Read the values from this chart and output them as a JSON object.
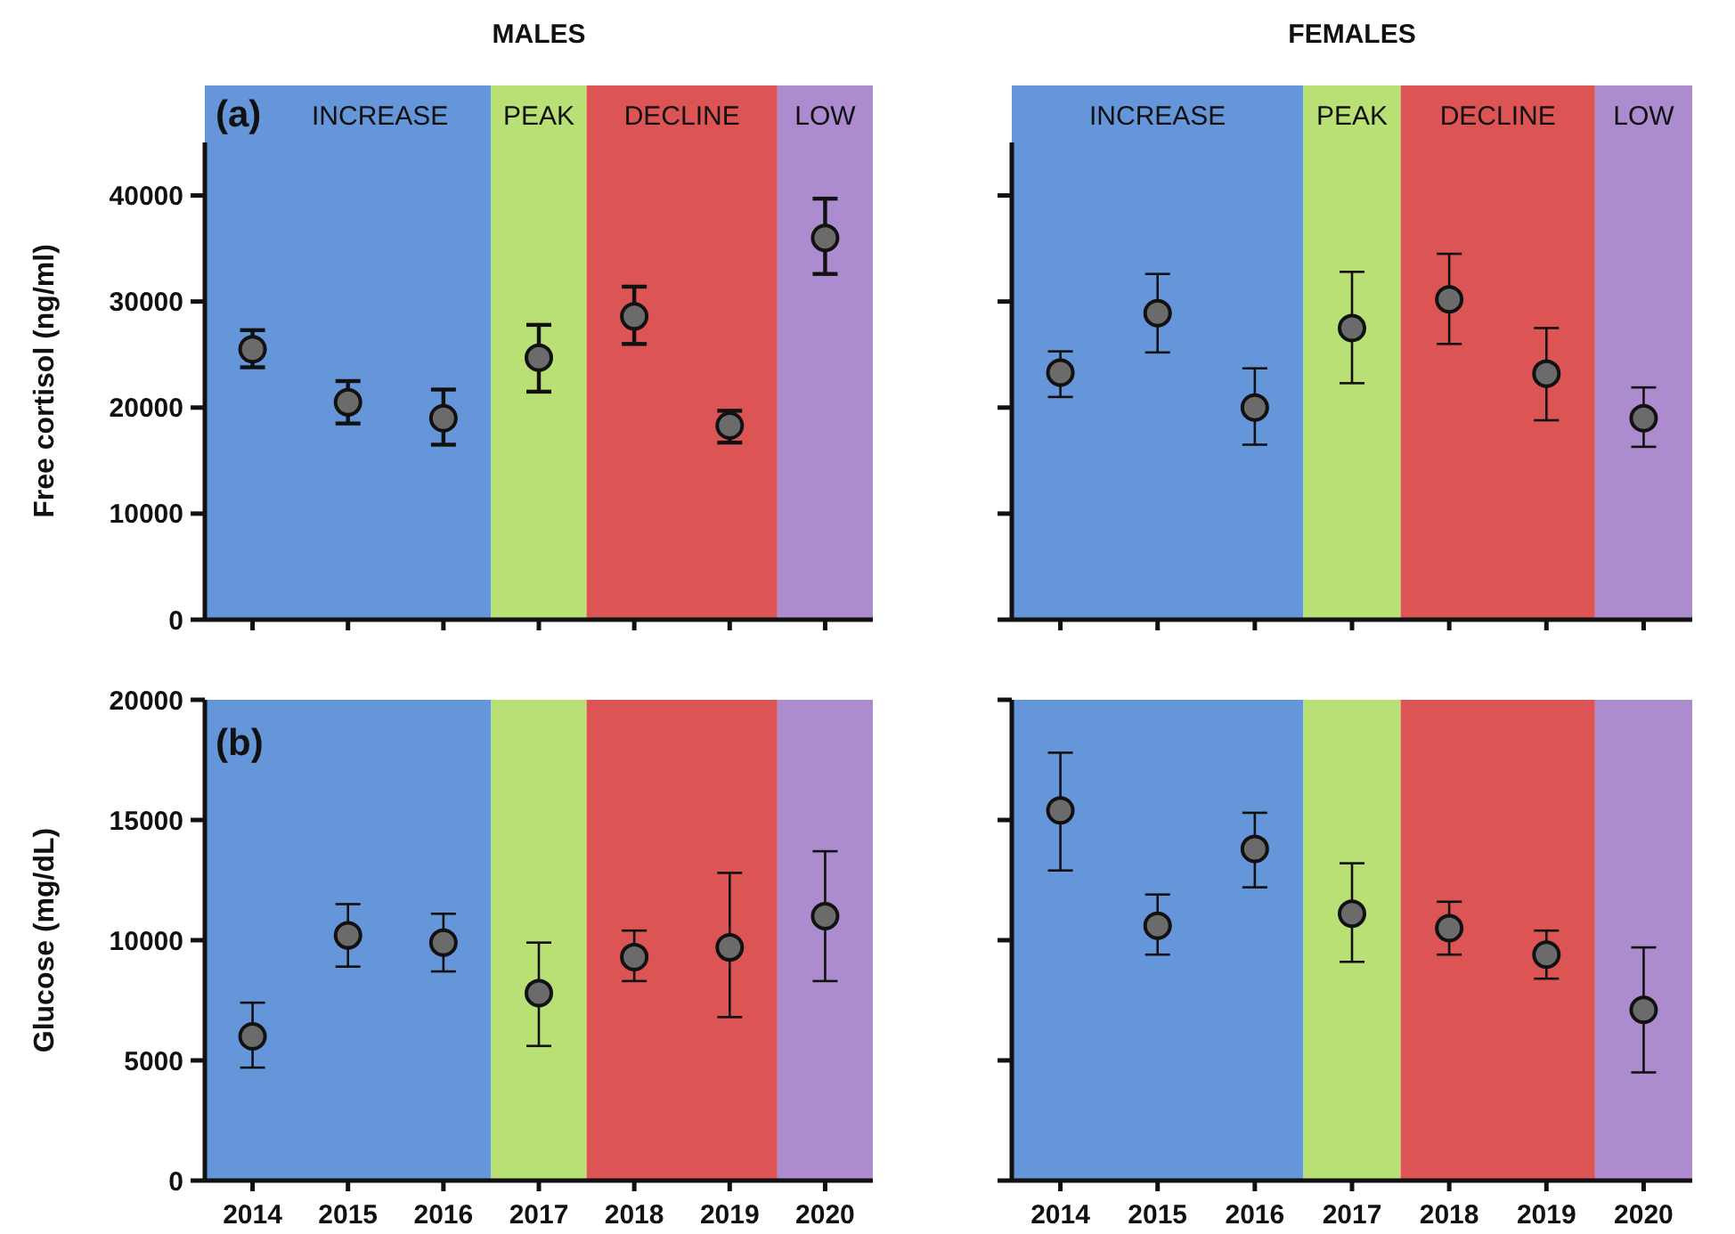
{
  "chart_data": [
    {
      "type": "scatter",
      "title": "MALES",
      "ylabel": "Free cortisol (ng/ml)",
      "categories": [
        "2014",
        "2015",
        "2016",
        "2017",
        "2018",
        "2019",
        "2020"
      ],
      "ylim": [
        0,
        45000
      ],
      "yticks": [
        0,
        10000,
        20000,
        30000,
        40000
      ],
      "tick_labels": "y",
      "marker": "circle",
      "grid": false,
      "annotations": [
        "(a)"
      ],
      "bands": [
        {
          "axis": "x",
          "from": "2014",
          "to": "2016",
          "label": "INCREASE",
          "color": "#6596da"
        },
        {
          "axis": "x",
          "from": "2017",
          "to": "2017",
          "label": "PEAK",
          "color": "#b8e074"
        },
        {
          "axis": "x",
          "from": "2018",
          "to": "2019",
          "label": "DECLINE",
          "color": "#dc5454"
        },
        {
          "axis": "x",
          "from": "2020",
          "to": "2020",
          "label": "LOW",
          "color": "#ad8bcf"
        }
      ],
      "series": [
        {
          "color": "#6b6b6b",
          "values": [
            25500,
            20500,
            19000,
            24700,
            28600,
            18300,
            36000
          ],
          "errors": [
            [
              23800,
              27300
            ],
            [
              18500,
              22500
            ],
            [
              16500,
              21700
            ],
            [
              21500,
              27800
            ],
            [
              26000,
              31400
            ],
            [
              16700,
              19700
            ],
            [
              32600,
              39700
            ]
          ]
        }
      ]
    },
    {
      "type": "scatter",
      "title": "FEMALES",
      "categories": [
        "2014",
        "2015",
        "2016",
        "2017",
        "2018",
        "2019",
        "2020"
      ],
      "ylim": [
        0,
        45000
      ],
      "yticks": [
        {
          "value": 0,
          "label": null
        },
        {
          "value": 10000,
          "label": null
        },
        {
          "value": 20000,
          "label": null
        },
        {
          "value": 30000,
          "label": null
        },
        {
          "value": 40000,
          "label": null
        }
      ],
      "tick_labels": false,
      "marker": "circle",
      "grid": false,
      "bands": [
        {
          "axis": "x",
          "from": "2014",
          "to": "2016",
          "label": "INCREASE",
          "color": "#6596da"
        },
        {
          "axis": "x",
          "from": "2017",
          "to": "2017",
          "label": "PEAK",
          "color": "#b8e074"
        },
        {
          "axis": "x",
          "from": "2018",
          "to": "2019",
          "label": "DECLINE",
          "color": "#dc5454"
        },
        {
          "axis": "x",
          "from": "2020",
          "to": "2020",
          "label": "LOW",
          "color": "#ad8bcf"
        }
      ],
      "series": [
        {
          "color": "#6b6b6b",
          "values": [
            23300,
            28900,
            20000,
            27500,
            30200,
            23200,
            19000
          ],
          "errors": [
            [
              21000,
              25300
            ],
            [
              25200,
              32600
            ],
            [
              16500,
              23700
            ],
            [
              22300,
              32800
            ],
            [
              26000,
              34500
            ],
            [
              18800,
              27500
            ],
            [
              16300,
              21900
            ]
          ]
        }
      ]
    },
    {
      "type": "scatter",
      "ylabel": "Glucose (mg/dL)",
      "categories": [
        "2014",
        "2015",
        "2016",
        "2017",
        "2018",
        "2019",
        "2020"
      ],
      "ylim": [
        0,
        20000
      ],
      "yticks": [
        0,
        5000,
        10000,
        15000,
        20000
      ],
      "marker": "circle",
      "grid": false,
      "annotations": [
        "(b)"
      ],
      "bands": [
        {
          "axis": "x",
          "from": "2014",
          "to": "2016",
          "color": "#6596da"
        },
        {
          "axis": "x",
          "from": "2017",
          "to": "2017",
          "color": "#b8e074"
        },
        {
          "axis": "x",
          "from": "2018",
          "to": "2019",
          "color": "#dc5454"
        },
        {
          "axis": "x",
          "from": "2020",
          "to": "2020",
          "color": "#ad8bcf"
        }
      ],
      "series": [
        {
          "color": "#6b6b6b",
          "values": [
            6000,
            10200,
            9900,
            7800,
            9300,
            9700,
            11000
          ],
          "errors": [
            [
              4700,
              7400
            ],
            [
              8900,
              11500
            ],
            [
              8700,
              11100
            ],
            [
              5600,
              9900
            ],
            [
              8300,
              10400
            ],
            [
              6800,
              12800
            ],
            [
              8300,
              13700
            ]
          ]
        }
      ]
    },
    {
      "type": "scatter",
      "categories": [
        "2014",
        "2015",
        "2016",
        "2017",
        "2018",
        "2019",
        "2020"
      ],
      "ylim": [
        0,
        20000
      ],
      "yticks": [
        {
          "value": 0,
          "label": null
        },
        {
          "value": 5000,
          "label": null
        },
        {
          "value": 10000,
          "label": null
        },
        {
          "value": 15000,
          "label": null
        },
        {
          "value": 20000,
          "label": null
        }
      ],
      "tick_labels": "x",
      "marker": "circle",
      "grid": false,
      "bands": [
        {
          "axis": "x",
          "from": "2014",
          "to": "2016",
          "color": "#6596da"
        },
        {
          "axis": "x",
          "from": "2017",
          "to": "2017",
          "color": "#b8e074"
        },
        {
          "axis": "x",
          "from": "2018",
          "to": "2019",
          "color": "#dc5454"
        },
        {
          "axis": "x",
          "from": "2020",
          "to": "2020",
          "color": "#ad8bcf"
        }
      ],
      "series": [
        {
          "color": "#6b6b6b",
          "values": [
            15400,
            10600,
            13800,
            11100,
            10500,
            9400,
            7100
          ],
          "errors": [
            [
              12900,
              17800
            ],
            [
              9400,
              11900
            ],
            [
              12200,
              15300
            ],
            [
              9100,
              13200
            ],
            [
              9400,
              11600
            ],
            [
              8400,
              10400
            ],
            [
              4500,
              9700
            ]
          ]
        }
      ]
    }
  ]
}
